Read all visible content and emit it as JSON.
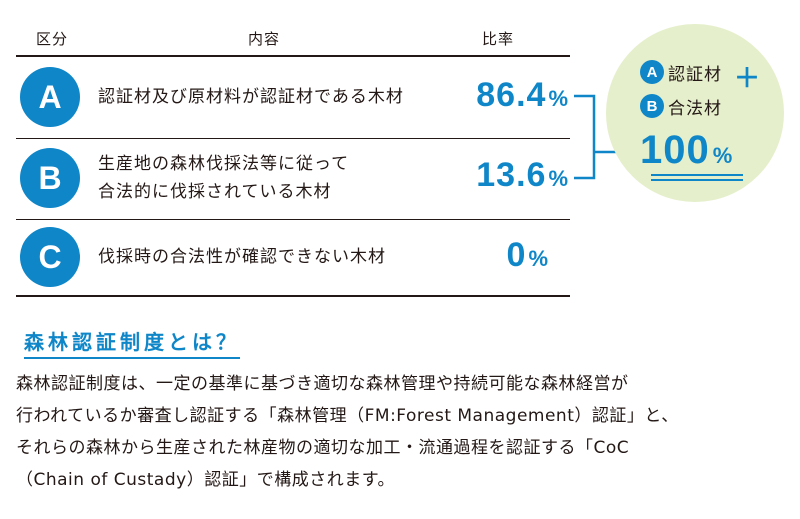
{
  "headers": {
    "category": "区分",
    "content": "内容",
    "ratio": "比率"
  },
  "rows": [
    {
      "letter": "A",
      "description_lines": [
        "認証材及び原材料が認証材である木材"
      ],
      "ratio": "86.4",
      "unit": "%"
    },
    {
      "letter": "B",
      "description_lines": [
        "生産地の森林伐採法等に従って",
        "合法的に伐採されている木材"
      ],
      "ratio": "13.6",
      "unit": "%"
    },
    {
      "letter": "C",
      "description_lines": [
        "伐採時の合法性が確認できない木材"
      ],
      "ratio": "0",
      "unit": "%"
    }
  ],
  "summary": {
    "line_a_letter": "A",
    "line_a_text": "認証材",
    "plus": "＋",
    "line_b_letter": "B",
    "line_b_text": "合法材",
    "total": "100",
    "total_unit": "%"
  },
  "section": {
    "title": "森林認証制度とは？",
    "paragraph_lines": [
      "森林認証制度は、一定の基準に基づき適切な森林管理や持続可能な森林経営が",
      "行われているか審査し認証する「森林管理（FM:Forest Management）認証」と、",
      "それらの森林から生産された林産物の適切な加工・流通過程を認証する「CoC",
      "（Chain of Custady）認証」で構成されます。"
    ]
  },
  "colors": {
    "accent": "#0f86c8",
    "circle_bg": "#e5efcb",
    "text": "#231815"
  }
}
